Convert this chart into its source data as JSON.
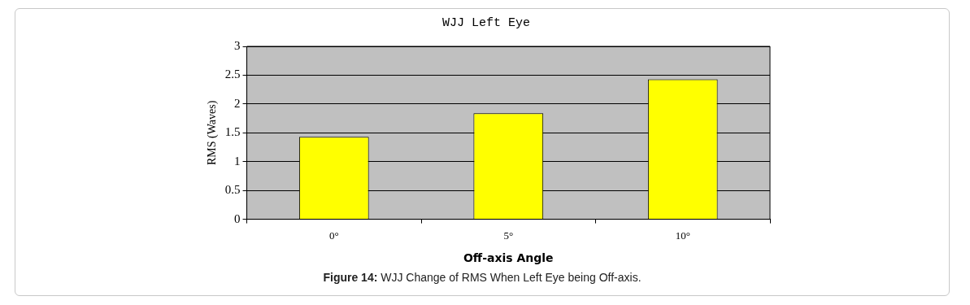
{
  "chart_data": {
    "type": "bar",
    "title": "WJJ Left Eye",
    "xlabel": "Off-axis Angle",
    "ylabel": "RMS (Waves)",
    "categories": [
      "0°",
      "5°",
      "10°"
    ],
    "values": [
      1.43,
      1.84,
      2.43
    ],
    "color": "#ffff00",
    "ylim": [
      0,
      3
    ],
    "yticks": [
      0,
      0.5,
      1,
      1.5,
      2,
      2.5,
      3
    ],
    "grid": "y",
    "annotations": [
      "Figure 14: WJJ Change of RMS When Left Eye being Off-axis."
    ]
  }
}
